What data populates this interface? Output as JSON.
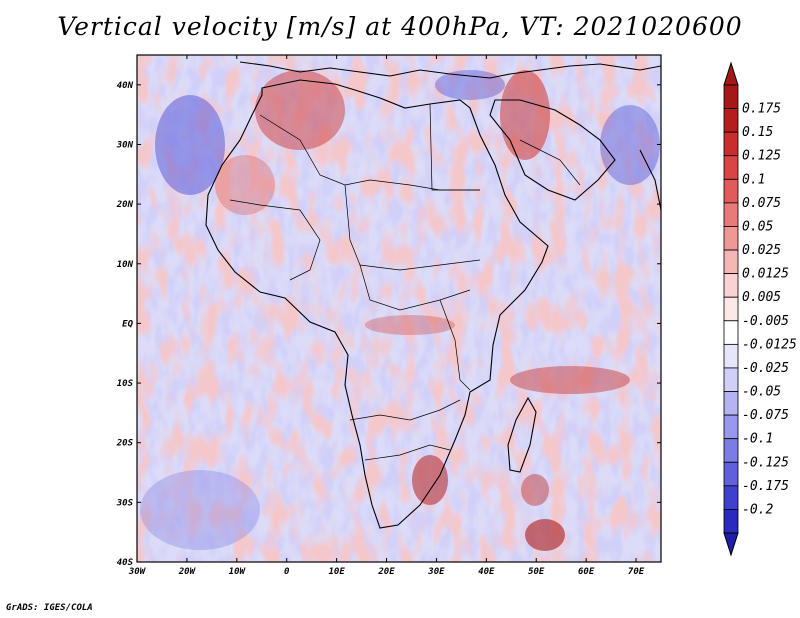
{
  "title": "Vertical velocity [m/s] at 400hPa, VT: 2021020600",
  "credit": "GrADS: IGES/COLA",
  "axes": {
    "lat_ticks": [
      {
        "value": 40,
        "label": "40N"
      },
      {
        "value": 30,
        "label": "30N"
      },
      {
        "value": 20,
        "label": "20N"
      },
      {
        "value": 10,
        "label": "10N"
      },
      {
        "value": 0,
        "label": "EQ"
      },
      {
        "value": -10,
        "label": "10S"
      },
      {
        "value": -20,
        "label": "20S"
      },
      {
        "value": -30,
        "label": "30S"
      },
      {
        "value": -40,
        "label": "40S"
      }
    ],
    "lon_ticks": [
      {
        "value": -30,
        "label": "30W"
      },
      {
        "value": -20,
        "label": "20W"
      },
      {
        "value": -10,
        "label": "10W"
      },
      {
        "value": 0,
        "label": "0"
      },
      {
        "value": 10,
        "label": "10E"
      },
      {
        "value": 20,
        "label": "20E"
      },
      {
        "value": 30,
        "label": "30E"
      },
      {
        "value": 40,
        "label": "40E"
      },
      {
        "value": 50,
        "label": "50E"
      },
      {
        "value": 60,
        "label": "60E"
      },
      {
        "value": 70,
        "label": "70E"
      }
    ],
    "lon_range": [
      -30,
      75
    ],
    "lat_range": [
      -40,
      45
    ]
  },
  "colorbar": {
    "levels": [
      {
        "label": "0.175",
        "color": "#b41e1e"
      },
      {
        "label": "0.15",
        "color": "#c92d2d"
      },
      {
        "label": "0.125",
        "color": "#d94444"
      },
      {
        "label": "0.1",
        "color": "#e05c5c"
      },
      {
        "label": "0.075",
        "color": "#e87a7a"
      },
      {
        "label": "0.05",
        "color": "#f09898"
      },
      {
        "label": "0.025",
        "color": "#f6b6b6"
      },
      {
        "label": "0.0125",
        "color": "#fad2d2"
      },
      {
        "label": "0.005",
        "color": "#fde8e8"
      },
      {
        "label": "-0.005",
        "color": "#ffffff"
      },
      {
        "label": "-0.0125",
        "color": "#e6e6fb"
      },
      {
        "label": "-0.025",
        "color": "#cfcff7"
      },
      {
        "label": "-0.05",
        "color": "#b4b4f2"
      },
      {
        "label": "-0.075",
        "color": "#9898ec"
      },
      {
        "label": "-0.1",
        "color": "#7c7ce5"
      },
      {
        "label": "-0.125",
        "color": "#6060dc"
      },
      {
        "label": "-0.175",
        "color": "#4040cf"
      },
      {
        "label": "-0.2",
        "color": "#2a2abf"
      }
    ],
    "top_color": "#a51818",
    "bottom_color": "#1e1eaa"
  },
  "colors": {
    "ocean_mix": "#cdd0f6",
    "land_mix": "#d9d9f5"
  }
}
